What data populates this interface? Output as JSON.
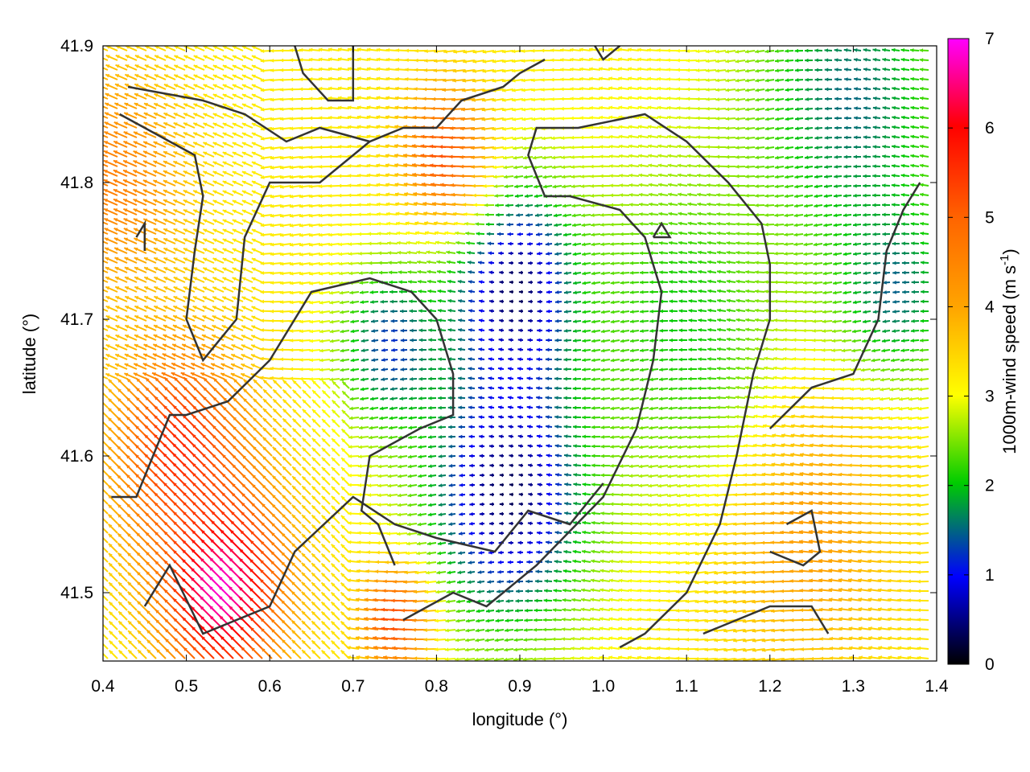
{
  "chart_data": {
    "type": "vector-field",
    "xlabel": "longitude (°)",
    "ylabel": "latitude (°)",
    "xlim": [
      0.4,
      1.4
    ],
    "ylim": [
      41.45,
      41.9
    ],
    "xticks": [
      0.4,
      0.5,
      0.6,
      0.7,
      0.8,
      0.9,
      1.0,
      1.1,
      1.2,
      1.3,
      1.4
    ],
    "xtick_labels": [
      "0.4",
      "0.5",
      "0.6",
      "0.7",
      "0.8",
      "0.9",
      "1.0",
      "1.1",
      "1.2",
      "1.3",
      "1.4"
    ],
    "yticks": [
      41.5,
      41.6,
      41.7,
      41.8,
      41.9
    ],
    "ytick_labels": [
      "41.5",
      "41.6",
      "41.7",
      "41.8",
      "41.9"
    ],
    "colorbar": {
      "label_main": "1000m-wind speed (m s",
      "label_exp": "-1",
      "label_close": ")",
      "range": [
        0,
        7
      ],
      "ticks": [
        0,
        1,
        2,
        3,
        4,
        5,
        6,
        7
      ],
      "tick_labels": [
        "0",
        "1",
        "2",
        "3",
        "4",
        "5",
        "6",
        "7"
      ],
      "colors": [
        "#000000",
        "#0000ff",
        "#00cc00",
        "#ffff00",
        "#ffa500",
        "#ff0000",
        "#ff00ff"
      ]
    },
    "speed_centers": [
      {
        "lon": 0.9,
        "lat": 41.72,
        "speed": 0.2,
        "r": 0.08
      },
      {
        "lon": 0.89,
        "lat": 41.575,
        "speed": 0.3,
        "r": 0.1
      },
      {
        "lon": 0.75,
        "lat": 41.68,
        "speed": 1.2,
        "r": 0.06
      },
      {
        "lon": 0.55,
        "lat": 41.5,
        "speed": 7.0,
        "r": 0.07
      },
      {
        "lon": 0.5,
        "lat": 41.6,
        "speed": 5.6,
        "r": 0.08
      },
      {
        "lon": 0.82,
        "lat": 41.82,
        "speed": 5.2,
        "r": 0.05
      },
      {
        "lon": 0.76,
        "lat": 41.48,
        "speed": 5.3,
        "r": 0.04
      },
      {
        "lon": 1.3,
        "lat": 41.86,
        "speed": 1.5,
        "r": 0.12
      },
      {
        "lon": 1.35,
        "lat": 41.72,
        "speed": 1.4,
        "r": 0.07
      },
      {
        "lon": 1.25,
        "lat": 41.55,
        "speed": 4.2,
        "r": 0.1
      },
      {
        "lon": 0.42,
        "lat": 41.8,
        "speed": 4.6,
        "r": 0.08
      },
      {
        "lon": 1.1,
        "lat": 41.7,
        "speed": 2.0,
        "r": 0.12
      }
    ],
    "background_speed": 3.2,
    "contours": [
      [
        [
          0.45,
          41.49
        ],
        [
          0.48,
          41.52
        ],
        [
          0.52,
          41.47
        ],
        [
          0.6,
          41.49
        ],
        [
          0.63,
          41.53
        ],
        [
          0.7,
          41.57
        ],
        [
          0.75,
          41.55
        ],
        [
          0.8,
          41.54
        ],
        [
          0.87,
          41.53
        ],
        [
          0.91,
          41.56
        ],
        [
          0.96,
          41.55
        ],
        [
          1.0,
          41.58
        ]
      ],
      [
        [
          0.41,
          41.57
        ],
        [
          0.44,
          41.57
        ],
        [
          0.48,
          41.63
        ],
        [
          0.5,
          41.63
        ],
        [
          0.55,
          41.64
        ],
        [
          0.6,
          41.67
        ],
        [
          0.65,
          41.72
        ],
        [
          0.72,
          41.73
        ],
        [
          0.77,
          41.72
        ],
        [
          0.8,
          41.7
        ],
        [
          0.82,
          41.66
        ],
        [
          0.82,
          41.63
        ],
        [
          0.78,
          41.62
        ],
        [
          0.72,
          41.6
        ],
        [
          0.71,
          41.56
        ],
        [
          0.73,
          41.55
        ],
        [
          0.75,
          41.52
        ]
      ],
      [
        [
          0.76,
          41.48
        ],
        [
          0.82,
          41.5
        ],
        [
          0.86,
          41.49
        ],
        [
          0.92,
          41.52
        ],
        [
          1.0,
          41.57
        ],
        [
          1.04,
          41.62
        ],
        [
          1.06,
          41.67
        ],
        [
          1.07,
          41.72
        ],
        [
          1.05,
          41.76
        ],
        [
          1.02,
          41.78
        ],
        [
          0.96,
          41.79
        ],
        [
          0.93,
          41.79
        ],
        [
          0.91,
          41.82
        ],
        [
          0.92,
          41.84
        ],
        [
          0.97,
          41.84
        ],
        [
          1.05,
          41.85
        ],
        [
          1.1,
          41.83
        ],
        [
          1.15,
          41.8
        ],
        [
          1.19,
          41.77
        ],
        [
          1.2,
          41.74
        ],
        [
          1.2,
          41.7
        ],
        [
          1.18,
          41.66
        ],
        [
          1.16,
          41.6
        ],
        [
          1.14,
          41.55
        ],
        [
          1.1,
          41.5
        ],
        [
          1.05,
          41.47
        ],
        [
          1.02,
          41.46
        ]
      ],
      [
        [
          0.43,
          41.87
        ],
        [
          0.52,
          41.86
        ],
        [
          0.57,
          41.85
        ],
        [
          0.62,
          41.83
        ],
        [
          0.66,
          41.84
        ],
        [
          0.72,
          41.83
        ],
        [
          0.76,
          41.84
        ],
        [
          0.8,
          41.84
        ],
        [
          0.83,
          41.86
        ],
        [
          0.88,
          41.87
        ],
        [
          0.9,
          41.88
        ],
        [
          0.93,
          41.89
        ]
      ],
      [
        [
          0.42,
          41.85
        ],
        [
          0.48,
          41.83
        ],
        [
          0.51,
          41.82
        ],
        [
          0.52,
          41.79
        ],
        [
          0.51,
          41.75
        ],
        [
          0.5,
          41.7
        ],
        [
          0.52,
          41.67
        ],
        [
          0.56,
          41.7
        ],
        [
          0.57,
          41.76
        ],
        [
          0.6,
          41.8
        ],
        [
          0.66,
          41.8
        ],
        [
          0.7,
          41.82
        ],
        [
          0.72,
          41.83
        ]
      ],
      [
        [
          0.63,
          41.9
        ],
        [
          0.64,
          41.88
        ],
        [
          0.67,
          41.86
        ],
        [
          0.7,
          41.86
        ],
        [
          0.7,
          41.88
        ],
        [
          0.7,
          41.9
        ]
      ],
      [
        [
          1.2,
          41.53
        ],
        [
          1.24,
          41.52
        ],
        [
          1.26,
          41.53
        ],
        [
          1.25,
          41.56
        ],
        [
          1.22,
          41.55
        ]
      ],
      [
        [
          1.12,
          41.47
        ],
        [
          1.16,
          41.48
        ],
        [
          1.2,
          41.49
        ],
        [
          1.25,
          41.49
        ],
        [
          1.27,
          41.47
        ]
      ],
      [
        [
          1.2,
          41.62
        ],
        [
          1.25,
          41.65
        ],
        [
          1.3,
          41.66
        ],
        [
          1.33,
          41.7
        ],
        [
          1.34,
          41.75
        ],
        [
          1.36,
          41.78
        ],
        [
          1.38,
          41.8
        ]
      ],
      [
        [
          1.06,
          41.76
        ],
        [
          1.08,
          41.76
        ],
        [
          1.07,
          41.77
        ],
        [
          1.06,
          41.76
        ]
      ],
      [
        [
          0.44,
          41.76
        ],
        [
          0.45,
          41.77
        ],
        [
          0.45,
          41.75
        ]
      ],
      [
        [
          0.99,
          41.9
        ],
        [
          1.0,
          41.89
        ],
        [
          1.02,
          41.9
        ]
      ]
    ]
  }
}
